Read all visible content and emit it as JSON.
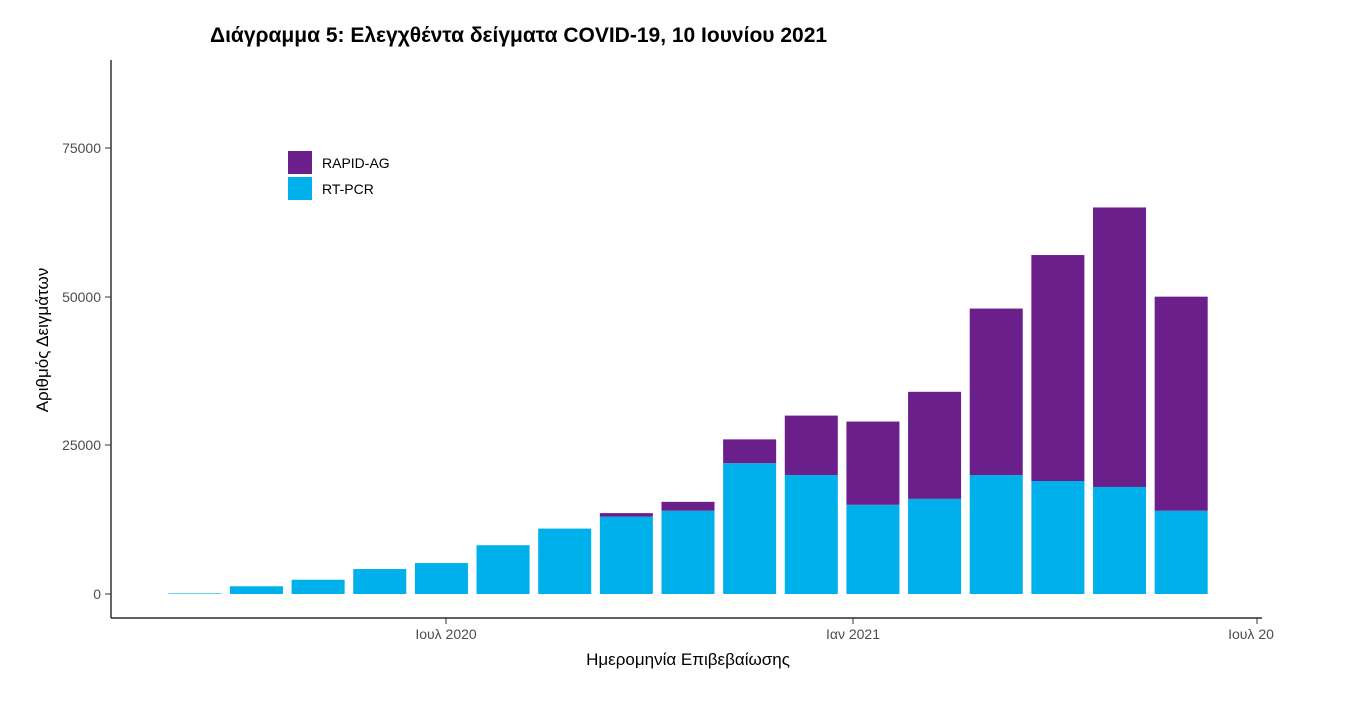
{
  "chart_data": {
    "type": "bar",
    "stacked": true,
    "title": "Διάγραμμα 5: Ελεγχθέντα δείγματα COVID-19, 10 Ιουνίου 2021",
    "xlabel": "Ημερομηνία Επιβεβαίωσης",
    "ylabel": "Αριθμός Δειγμάτων",
    "ylim": [
      0,
      90000
    ],
    "y_ticks": [
      "0",
      "25000",
      "50000",
      "75000"
    ],
    "x_ticks": [
      "Ιουλ 2020",
      "Ιαν 2021",
      "Ιουλ 20"
    ],
    "legend_position": "top-left",
    "grid": false,
    "colors": {
      "RAPID-AG": "#6a1f8a",
      "RT-PCR": "#00b0eb"
    },
    "series_names": [
      "RAPID-AG",
      "RT-PCR"
    ],
    "monthly_approx": [
      {
        "month": "2020-02",
        "RT-PCR": 100,
        "RAPID-AG": 0
      },
      {
        "month": "2020-03",
        "RT-PCR": 1300,
        "RAPID-AG": 0
      },
      {
        "month": "2020-04",
        "RT-PCR": 2400,
        "RAPID-AG": 0
      },
      {
        "month": "2020-05",
        "RT-PCR": 4200,
        "RAPID-AG": 0
      },
      {
        "month": "2020-06",
        "RT-PCR": 5200,
        "RAPID-AG": 0
      },
      {
        "month": "2020-07",
        "RT-PCR": 8200,
        "RAPID-AG": 0
      },
      {
        "month": "2020-08",
        "RT-PCR": 11000,
        "RAPID-AG": 0
      },
      {
        "month": "2020-09",
        "RT-PCR": 13000,
        "RAPID-AG": 600
      },
      {
        "month": "2020-10",
        "RT-PCR": 14000,
        "RAPID-AG": 1500
      },
      {
        "month": "2020-11",
        "RT-PCR": 22000,
        "RAPID-AG": 4000
      },
      {
        "month": "2020-12",
        "RT-PCR": 20000,
        "RAPID-AG": 10000
      },
      {
        "month": "2021-01",
        "RT-PCR": 15000,
        "RAPID-AG": 14000
      },
      {
        "month": "2021-02",
        "RT-PCR": 16000,
        "RAPID-AG": 18000
      },
      {
        "month": "2021-03",
        "RT-PCR": 20000,
        "RAPID-AG": 28000
      },
      {
        "month": "2021-04",
        "RT-PCR": 19000,
        "RAPID-AG": 38000
      },
      {
        "month": "2021-05",
        "RT-PCR": 18000,
        "RAPID-AG": 47000
      },
      {
        "month": "2021-06",
        "RT-PCR": 14000,
        "RAPID-AG": 36000
      }
    ]
  }
}
